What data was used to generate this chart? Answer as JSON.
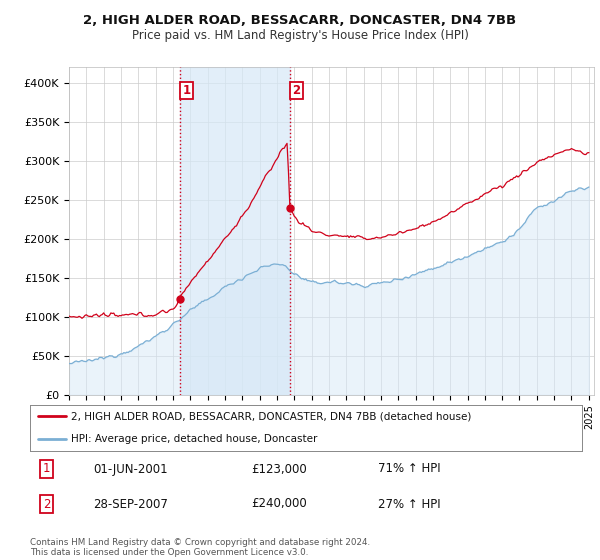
{
  "title": "2, HIGH ALDER ROAD, BESSACARR, DONCASTER, DN4 7BB",
  "subtitle": "Price paid vs. HM Land Registry's House Price Index (HPI)",
  "ylabel_ticks": [
    "£0",
    "£50K",
    "£100K",
    "£150K",
    "£200K",
    "£250K",
    "£300K",
    "£350K",
    "£400K"
  ],
  "ytick_values": [
    0,
    50000,
    100000,
    150000,
    200000,
    250000,
    300000,
    350000,
    400000
  ],
  "ylim": [
    0,
    420000
  ],
  "xlim_start": 1995.0,
  "xlim_end": 2025.3,
  "hpi_color": "#7bafd4",
  "hpi_fill_color": "#d6e8f7",
  "price_color": "#d0021b",
  "vline_color": "#d0021b",
  "marker1_date": 2001.42,
  "marker1_price": 123000,
  "marker2_date": 2007.75,
  "marker2_price": 240000,
  "legend_label1": "2, HIGH ALDER ROAD, BESSACARR, DONCASTER, DN4 7BB (detached house)",
  "legend_label2": "HPI: Average price, detached house, Doncaster",
  "annotation1_label": "1",
  "annotation2_label": "2",
  "table_row1": [
    "1",
    "01-JUN-2001",
    "£123,000",
    "71% ↑ HPI"
  ],
  "table_row2": [
    "2",
    "28-SEP-2007",
    "£240,000",
    "27% ↑ HPI"
  ],
  "footer": "Contains HM Land Registry data © Crown copyright and database right 2024.\nThis data is licensed under the Open Government Licence v3.0.",
  "background_color": "#ffffff",
  "grid_color": "#cccccc",
  "title_fontsize": 9.5,
  "subtitle_fontsize": 8.5
}
